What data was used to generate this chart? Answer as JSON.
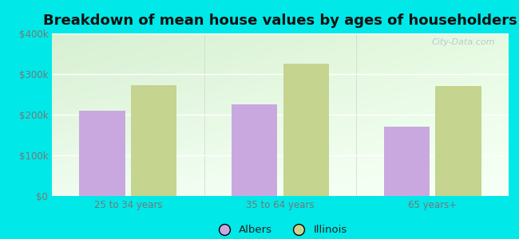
{
  "title": "Breakdown of mean house values by ages of householders",
  "categories": [
    "25 to 34 years",
    "35 to 64 years",
    "65 years+"
  ],
  "albers_values": [
    210000,
    225000,
    170000
  ],
  "illinois_values": [
    272000,
    325000,
    270000
  ],
  "albers_color": "#c9a8e0",
  "illinois_color": "#c5d48e",
  "ylim": [
    0,
    400000
  ],
  "yticks": [
    0,
    100000,
    200000,
    300000,
    400000
  ],
  "ytick_labels": [
    "$0",
    "$100k",
    "$200k",
    "$300k",
    "$400k"
  ],
  "bar_width": 0.3,
  "background_outer": "#00e8e8",
  "grid_color": "#ffffff",
  "title_fontsize": 13,
  "axis_label_color": "#777777",
  "legend_labels": [
    "Albers",
    "Illinois"
  ],
  "watermark": "City-Data.com"
}
